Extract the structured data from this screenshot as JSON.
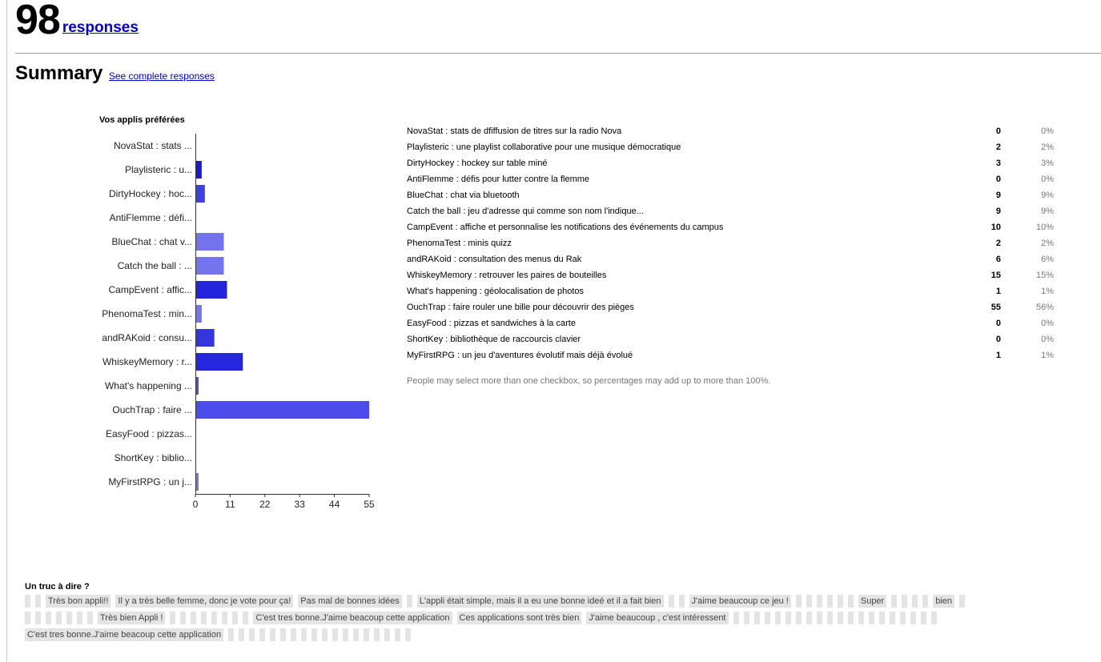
{
  "header": {
    "count": "98",
    "responses_link": "responses"
  },
  "summary": {
    "title": "Summary",
    "link": "See complete responses"
  },
  "question1": {
    "title": "Vos applis préférées",
    "note": "People may select more than one checkbox, so percentages may add up to more than 100%.",
    "rows": [
      {
        "label": "NovaStat : stats de dfiffusion de titres sur la radio Nova",
        "count": "0",
        "pct": "0%"
      },
      {
        "label": "Playlisteric : une playlist collaborative pour une musique démocratique",
        "count": "2",
        "pct": "2%"
      },
      {
        "label": "DirtyHockey : hockey sur table miné",
        "count": "3",
        "pct": "3%"
      },
      {
        "label": "AntiFlemme : défis pour lutter contre la flemme",
        "count": "0",
        "pct": "0%"
      },
      {
        "label": "BlueChat : chat via bluetooth",
        "count": "9",
        "pct": "9%"
      },
      {
        "label": "Catch the ball : jeu d'adresse qui comme son nom l'indique...",
        "count": "9",
        "pct": "9%"
      },
      {
        "label": "CampEvent : affiche et personnalise les notifications des événements du campus",
        "count": "10",
        "pct": "10%"
      },
      {
        "label": "PhenomaTest : minis quizz",
        "count": "2",
        "pct": "2%"
      },
      {
        "label": "andRAKoid : consultation des menus du Rak",
        "count": "6",
        "pct": "6%"
      },
      {
        "label": "WhiskeyMemory : retrouver les paires de bouteilles",
        "count": "15",
        "pct": "15%"
      },
      {
        "label": "What's happening : géolocalisation de photos",
        "count": "1",
        "pct": "1%"
      },
      {
        "label": "OuchTrap : faire rouler une bille pour découvrir des pièges",
        "count": "55",
        "pct": "56%"
      },
      {
        "label": "EasyFood : pizzas et sandwiches à la carte",
        "count": "0",
        "pct": "0%"
      },
      {
        "label": "ShortKey : bibliothèque de raccourcis clavier",
        "count": "0",
        "pct": "0%"
      },
      {
        "label": "MyFirstRPG : un jeu d'aventures évolutif mais déjà évolué",
        "count": "1",
        "pct": "1%"
      }
    ]
  },
  "chart_data": {
    "type": "bar",
    "orientation": "horizontal",
    "title": "Vos applis préférées",
    "categories": [
      "NovaStat : stats ...",
      "Playlisteric :  u...",
      "DirtyHockey : hoc...",
      "AntiFlemme : défi...",
      "BlueChat : chat v...",
      "Catch the ball : ...",
      "CampEvent : affic...",
      "PhenomaTest : min...",
      "andRAKoid : consu...",
      "WhiskeyMemory : r...",
      "What's happening ...",
      "OuchTrap : faire ...",
      "EasyFood : pizzas...",
      "ShortKey : biblio...",
      "MyFirstRPG : un j..."
    ],
    "values": [
      0,
      2,
      3,
      0,
      9,
      9,
      10,
      2,
      6,
      15,
      1,
      55,
      0,
      0,
      1
    ],
    "colors": [
      "#1a1ad8",
      "#1a1ad8",
      "#3f3fe6",
      "#6c6cf0",
      "#7373ee",
      "#7474ee",
      "#2424dd",
      "#7575ee",
      "#3535e0",
      "#2626dc",
      "#4a4ae6",
      "#4c4cea",
      "#6c6cf0",
      "#6c6cf0",
      "#7575ee"
    ],
    "xticks": [
      0,
      11,
      22,
      33,
      44,
      55
    ],
    "xlim": [
      0,
      55
    ],
    "grid": false,
    "legend": "none"
  },
  "question2": {
    "title": "Un truc à dire ?",
    "answers": [
      "",
      "",
      "Très bon appli!!",
      "Il y a très belle femme, donc je vote pour ça!",
      "Pas mal de bonnes idées ",
      "",
      "L'appli était simple, mais il a eu une bonne ideé et il a fait bien",
      "",
      "",
      "J'aime beaucoup ce jeu ! ",
      "",
      "",
      "",
      "",
      "",
      "",
      "Super",
      "",
      "",
      "",
      "",
      "bien",
      "",
      "",
      "",
      "",
      "",
      "",
      "",
      "",
      "Très bien Appli !",
      "",
      "",
      "",
      "",
      "",
      "",
      "",
      "",
      "C'est tres bonne.J'aime beacoup cette application",
      "Ces applications sont très bien",
      "J'aime beaucoup , c'est intéressent",
      "",
      "",
      "",
      "",
      "",
      "",
      "",
      "",
      "",
      "",
      "",
      "",
      "",
      "",
      "",
      "",
      "",
      "",
      "",
      "",
      "C'est tres bonne.J'aime beacoup cette application",
      "",
      "",
      "",
      "",
      "",
      "",
      "",
      "",
      "",
      "",
      "",
      "",
      "",
      "",
      "",
      "",
      "",
      ""
    ]
  }
}
